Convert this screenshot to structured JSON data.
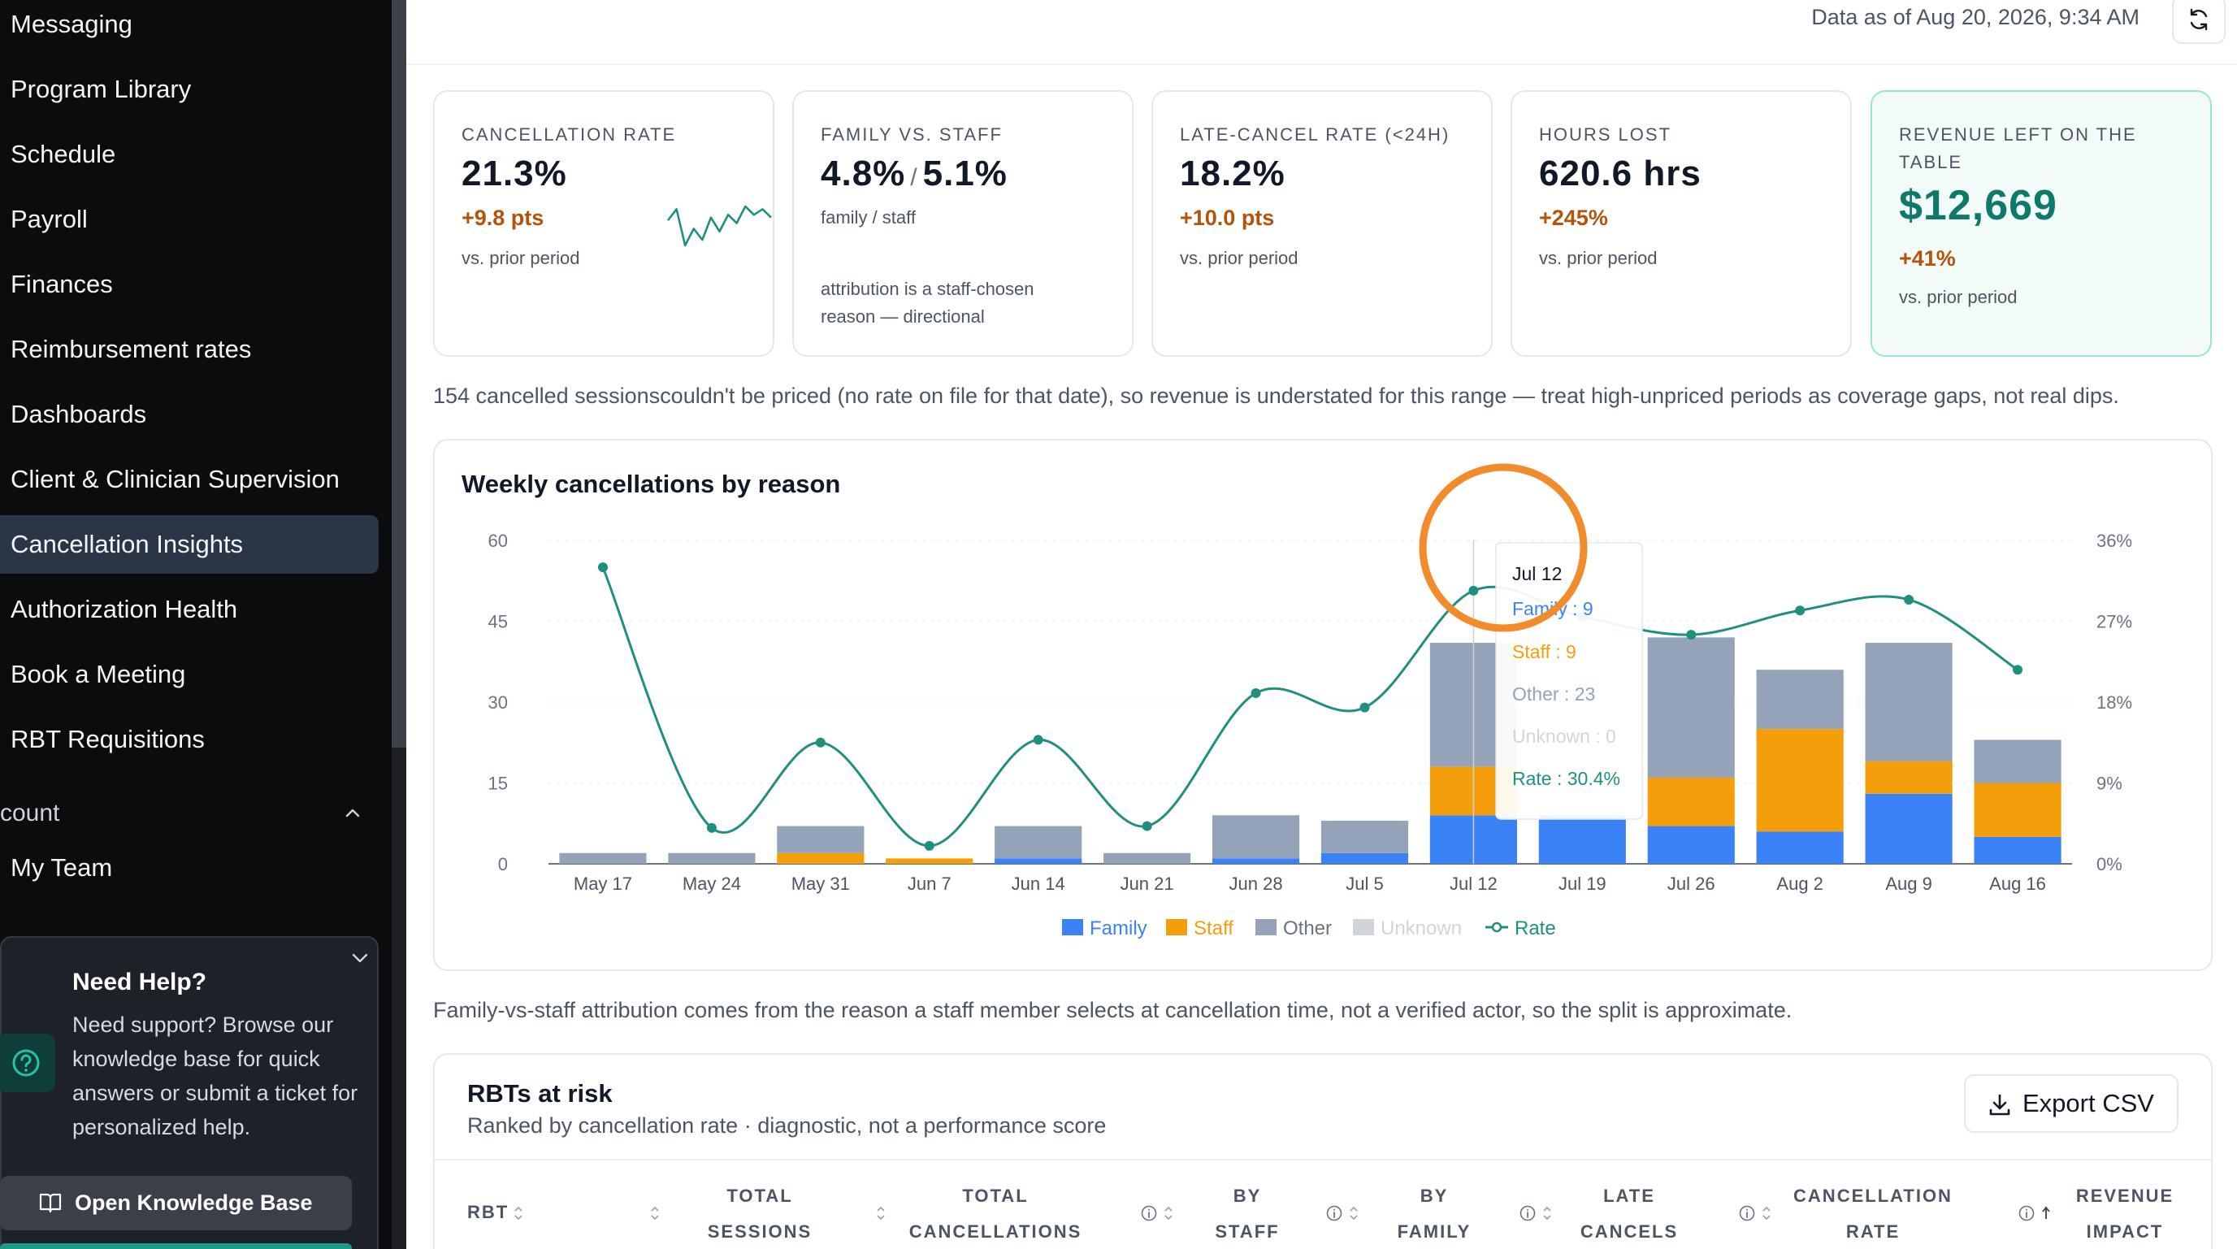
{
  "sidebar": {
    "items": [
      {
        "label": "Messaging",
        "active": false
      },
      {
        "label": "Program Library",
        "active": false
      },
      {
        "label": "Schedule",
        "active": false
      },
      {
        "label": "Payroll",
        "active": false
      },
      {
        "label": "Finances",
        "active": false
      },
      {
        "label": "Reimbursement rates",
        "active": false
      },
      {
        "label": "Dashboards",
        "active": false
      },
      {
        "label": "Client & Clinician Supervision",
        "active": false
      },
      {
        "label": "Cancellation Insights",
        "active": true
      },
      {
        "label": "Authorization Health",
        "active": false
      },
      {
        "label": "Book a Meeting",
        "active": false
      },
      {
        "label": "RBT Requisitions",
        "active": false
      }
    ],
    "section_label": "count",
    "section_items": [
      {
        "label": "My Team"
      }
    ],
    "help": {
      "title": "Need Help?",
      "text": "Need support? Browse our knowledge base for quick answers or submit a ticket for personalized help.",
      "button_label": "Open Knowledge Base"
    }
  },
  "header": {
    "data_as_of": "Data as of Aug 20, 2026, 9:34 AM"
  },
  "kpis": {
    "cancellation_rate": {
      "label": "CANCELLATION RATE",
      "value": "21.3%",
      "delta": "+9.8 pts",
      "sub": "vs. prior period",
      "sparkline": [
        27,
        31,
        18,
        24,
        20,
        28,
        23,
        29,
        26,
        32,
        29,
        31,
        28
      ]
    },
    "family_vs_staff": {
      "label": "FAMILY VS. STAFF",
      "family": "4.8%",
      "slash": "/",
      "staff": "5.1%",
      "sub": "family / staff",
      "note": "attribution is a staff-chosen reason — directional"
    },
    "late_cancel": {
      "label": "LATE-CANCEL RATE (<24H)",
      "value": "18.2%",
      "delta": "+10.0 pts",
      "sub": "vs. prior period"
    },
    "hours_lost": {
      "label": "HOURS LOST",
      "value": "620.6 hrs",
      "delta": "+245%",
      "sub": "vs. prior period"
    },
    "revenue_left": {
      "label": "REVENUE LEFT ON THE TABLE",
      "value": "$12,669",
      "delta": "+41%",
      "sub": "vs. prior period"
    }
  },
  "notes": {
    "unpriced": "154 cancelled sessionscouldn't be priced (no rate on file for that date), so revenue is understated for this range — treat high-unpriced periods as coverage gaps, not real dips.",
    "attribution": "Family-vs-staff attribution comes from the reason a staff member selects at cancellation time, not a verified actor, so the split is approximate."
  },
  "chart": {
    "title": "Weekly cancellations by reason",
    "legend": {
      "family": "Family",
      "staff": "Staff",
      "other": "Other",
      "unknown": "Unknown",
      "rate": "Rate"
    },
    "tooltip": {
      "title": "Jul 12",
      "family": "Family : 9",
      "staff": "Staff : 9",
      "other": "Other : 23",
      "unknown": "Unknown : 0",
      "rate": "Rate : 30.4%"
    },
    "colors": {
      "family": "#3b82f6",
      "staff": "#f59e0b",
      "other": "#94a3b8",
      "unknown": "#d1d5db",
      "rate": "#1f8f7f",
      "highlight": "#f28b2c"
    }
  },
  "chart_data": {
    "type": "bar",
    "stacked": true,
    "categories": [
      "May 17",
      "May 24",
      "May 31",
      "Jun 7",
      "Jun 14",
      "Jun 21",
      "Jun 28",
      "Jul 5",
      "Jul 12",
      "Jul 19",
      "Jul 26",
      "Aug 2",
      "Aug 9",
      "Aug 16"
    ],
    "series": [
      {
        "name": "Family",
        "axis": "left",
        "values": [
          0,
          0,
          0,
          0,
          1,
          0,
          1,
          2,
          9,
          9,
          7,
          6,
          13,
          5
        ]
      },
      {
        "name": "Staff",
        "axis": "left",
        "values": [
          0,
          0,
          2,
          1,
          0,
          0,
          0,
          0,
          9,
          0,
          9,
          19,
          6,
          10
        ]
      },
      {
        "name": "Other",
        "axis": "left",
        "values": [
          2,
          2,
          5,
          0,
          6,
          2,
          8,
          6,
          23,
          0,
          26,
          11,
          22,
          8
        ]
      },
      {
        "name": "Unknown",
        "axis": "left",
        "values": [
          0,
          0,
          0,
          0,
          0,
          0,
          0,
          0,
          0,
          0,
          0,
          0,
          0,
          0
        ]
      },
      {
        "name": "Rate",
        "type": "line",
        "axis": "right",
        "values": [
          33.0,
          4.0,
          13.5,
          2.0,
          13.8,
          4.2,
          19.0,
          17.4,
          30.4,
          27.5,
          25.5,
          28.2,
          29.4,
          21.6
        ]
      }
    ],
    "ylim": [
      0,
      60
    ],
    "y_ticks": [
      0,
      15,
      30,
      45,
      60
    ],
    "y2lim": [
      0,
      36
    ],
    "y2_ticks": [
      "0%",
      "9%",
      "18%",
      "27%",
      "36%"
    ],
    "legend_position": "bottom-center",
    "grid": true
  },
  "rbt": {
    "title": "RBTs at risk",
    "subtitle": "Ranked by cancellation rate · diagnostic, not a performance score",
    "export_label": "Export CSV",
    "columns": [
      {
        "line1": "RBT",
        "line2": ""
      },
      {
        "line1": "TOTAL",
        "line2": "SESSIONS"
      },
      {
        "line1": "TOTAL",
        "line2": "CANCELLATIONS"
      },
      {
        "line1": "BY",
        "line2": "STAFF"
      },
      {
        "line1": "BY",
        "line2": "FAMILY"
      },
      {
        "line1": "LATE",
        "line2": "CANCELS"
      },
      {
        "line1": "CANCELLATION",
        "line2": "RATE"
      },
      {
        "line1": "REVENUE",
        "line2": "IMPACT"
      }
    ]
  }
}
